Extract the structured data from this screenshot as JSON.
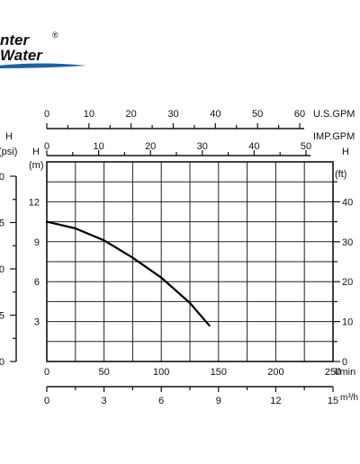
{
  "brand": {
    "line1": "nter",
    "reg": "®",
    "line2": "Water",
    "color": "#1a5fa8"
  },
  "chart_data": {
    "type": "line",
    "title": "",
    "grid": true,
    "x_main": {
      "label": "l/min",
      "range": [
        0,
        250
      ],
      "ticks": [
        0,
        50,
        100,
        150,
        200,
        250
      ]
    },
    "x_m3h": {
      "label": "m³/h",
      "range": [
        0,
        15
      ],
      "ticks": [
        0,
        3,
        6,
        9,
        12,
        15
      ]
    },
    "x_usgpm": {
      "label": "U.S.GPM",
      "range": [
        0,
        60
      ],
      "ticks": [
        0,
        10,
        20,
        30,
        40,
        50,
        60
      ]
    },
    "x_impgpm": {
      "label": "IMP.GPM",
      "range": [
        0,
        50
      ],
      "ticks": [
        0,
        10,
        20,
        30,
        40,
        50
      ]
    },
    "y_main": {
      "label": "H",
      "unit": "(m)",
      "range": [
        0,
        15
      ],
      "ticks": [
        3,
        6,
        9,
        12
      ]
    },
    "y_ft": {
      "label": "H",
      "unit": "(ft)",
      "range": [
        0,
        50
      ],
      "ticks": [
        0,
        10,
        20,
        30,
        40
      ]
    },
    "y_psi": {
      "label": "H",
      "unit": "(psi)",
      "ticks": [
        "0",
        "5",
        "0",
        "5",
        "0"
      ]
    },
    "series": [
      {
        "x": [
          0,
          25,
          50,
          75,
          100,
          125,
          142
        ],
        "y": [
          10.5,
          10.0,
          9.1,
          7.8,
          6.3,
          4.4,
          2.7
        ]
      }
    ]
  }
}
